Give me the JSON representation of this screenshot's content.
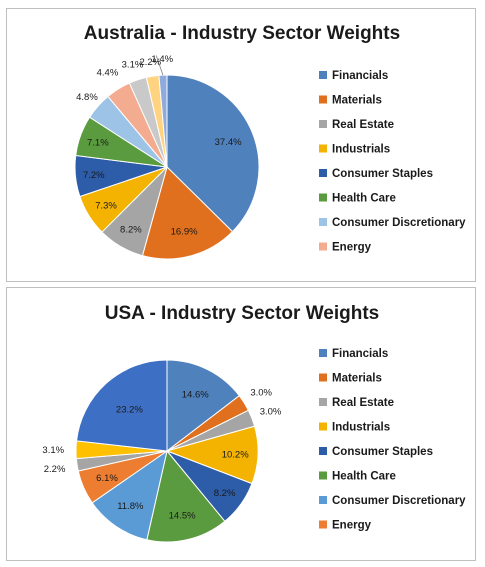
{
  "chart_data": [
    {
      "type": "pie",
      "title": "Australia - Industry Sector Weights",
      "legend_position": "right",
      "categories": [
        "Financials",
        "Materials",
        "Real Estate",
        "Industrials",
        "Consumer Staples",
        "Health Care",
        "Consumer Discretionary",
        "Energy"
      ],
      "legend_colors": [
        "#4f81bd",
        "#e0701e",
        "#a5a5a5",
        "#f3b300",
        "#2d5ca8",
        "#5b9b3f",
        "#9dc3e6",
        "#f4ac90"
      ],
      "slices": [
        {
          "value": 37.4,
          "label": "37.4%",
          "color": "#4f81bd"
        },
        {
          "value": 16.9,
          "label": "16.9%",
          "color": "#e0701e"
        },
        {
          "value": 8.2,
          "label": "8.2%",
          "color": "#a5a5a5"
        },
        {
          "value": 7.3,
          "label": "7.3%",
          "color": "#f3b300"
        },
        {
          "value": 7.2,
          "label": "7.2%",
          "color": "#2d5ca8"
        },
        {
          "value": 7.1,
          "label": "7.1%",
          "color": "#5b9b3f"
        },
        {
          "value": 4.8,
          "label": "4.8%",
          "color": "#9dc3e6"
        },
        {
          "value": 4.4,
          "label": "4.4%",
          "color": "#f4ac90"
        },
        {
          "value": 3.1,
          "label": "3.1%",
          "color": "#c9c9c9"
        },
        {
          "value": 2.2,
          "label": "2.2%",
          "color": "#ffd37f"
        },
        {
          "value": 1.4,
          "label": "1.4%",
          "color": "#8faadc"
        }
      ]
    },
    {
      "type": "pie",
      "title": "USA - Industry Sector Weights",
      "legend_position": "right",
      "categories": [
        "Financials",
        "Materials",
        "Real Estate",
        "Industrials",
        "Consumer Staples",
        "Health Care",
        "Consumer Discretionary",
        "Energy"
      ],
      "legend_colors": [
        "#4f81bd",
        "#e0701e",
        "#a5a5a5",
        "#f3b300",
        "#2d5ca8",
        "#5b9b3f",
        "#5b9bd5",
        "#ed7d31"
      ],
      "slices": [
        {
          "value": 14.6,
          "label": "14.6%",
          "color": "#4f81bd"
        },
        {
          "value": 3.0,
          "label": "3.0%",
          "color": "#e0701e"
        },
        {
          "value": 3.0,
          "label": "3.0%",
          "color": "#a5a5a5"
        },
        {
          "value": 10.2,
          "label": "10.2%",
          "color": "#f3b300"
        },
        {
          "value": 8.2,
          "label": "8.2%",
          "color": "#2d5ca8"
        },
        {
          "value": 14.5,
          "label": "14.5%",
          "color": "#5b9b3f"
        },
        {
          "value": 11.8,
          "label": "11.8%",
          "color": "#5b9bd5"
        },
        {
          "value": 6.1,
          "label": "6.1%",
          "color": "#ed7d31"
        },
        {
          "value": 2.2,
          "label": "2.2%",
          "color": "#a5a5a5"
        },
        {
          "value": 3.1,
          "label": "3.1%",
          "color": "#ffc000"
        },
        {
          "value": 23.2,
          "label": "23.2%",
          "color": "#3d6fc4"
        }
      ]
    }
  ]
}
